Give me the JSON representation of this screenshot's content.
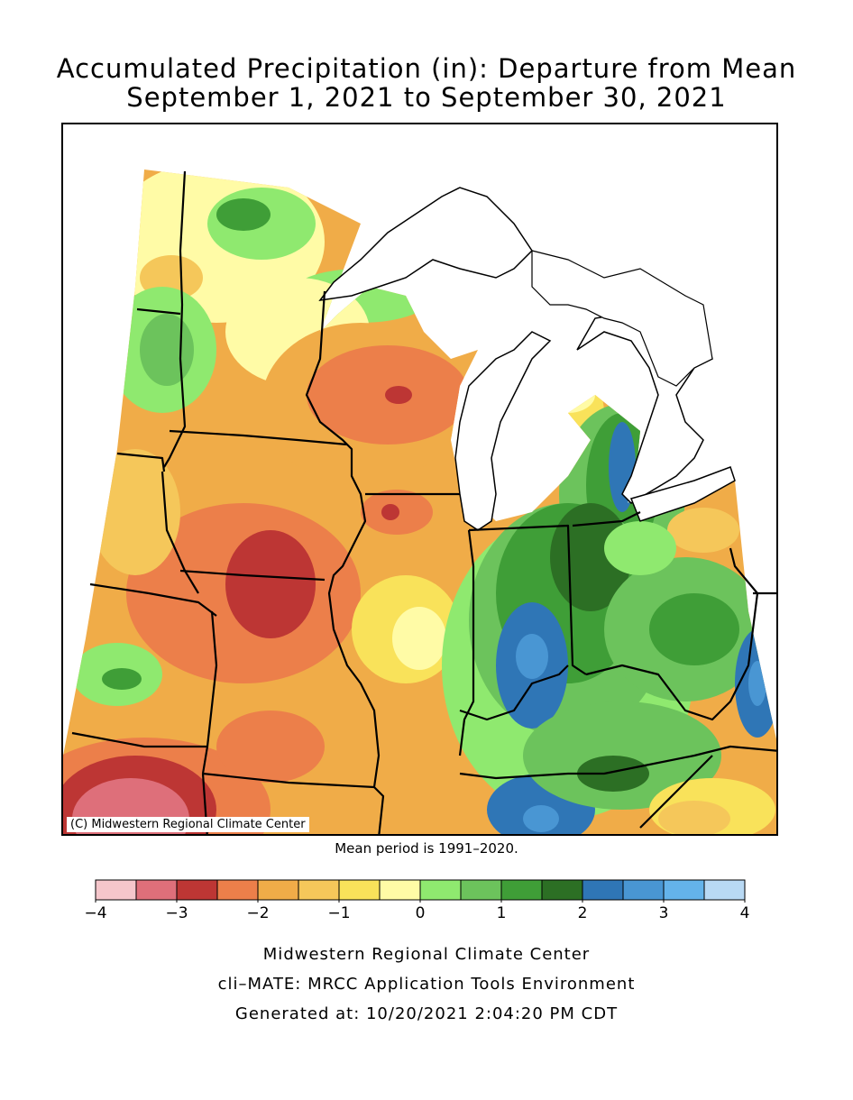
{
  "title": {
    "line1": "Accumulated Precipitation (in): Departure from Mean",
    "line2": "September 1, 2021 to September 30, 2021"
  },
  "credit": "(C) Midwestern Regional Climate Center",
  "mean_note": "Mean period is 1991–2020.",
  "legend": {
    "colors": [
      "#f5c6cb",
      "#de6f7a",
      "#bd3634",
      "#ec7f4a",
      "#f0ac48",
      "#f5c75a",
      "#f9e25a",
      "#fffba6",
      "#8fe96f",
      "#6cc35c",
      "#3f9e37",
      "#2c6f24",
      "#2f76b6",
      "#4996d3",
      "#64b3ea",
      "#b8d9f4"
    ],
    "ticks": [
      "−4",
      "−3",
      "−2",
      "−1",
      "0",
      "1",
      "2",
      "3",
      "4"
    ]
  },
  "footer": {
    "line1": "Midwestern Regional Climate Center",
    "line2": "cli–MATE: MRCC Application Tools Environment",
    "line3": "Generated at: 10/20/2021 2:04:20 PM CDT"
  }
}
